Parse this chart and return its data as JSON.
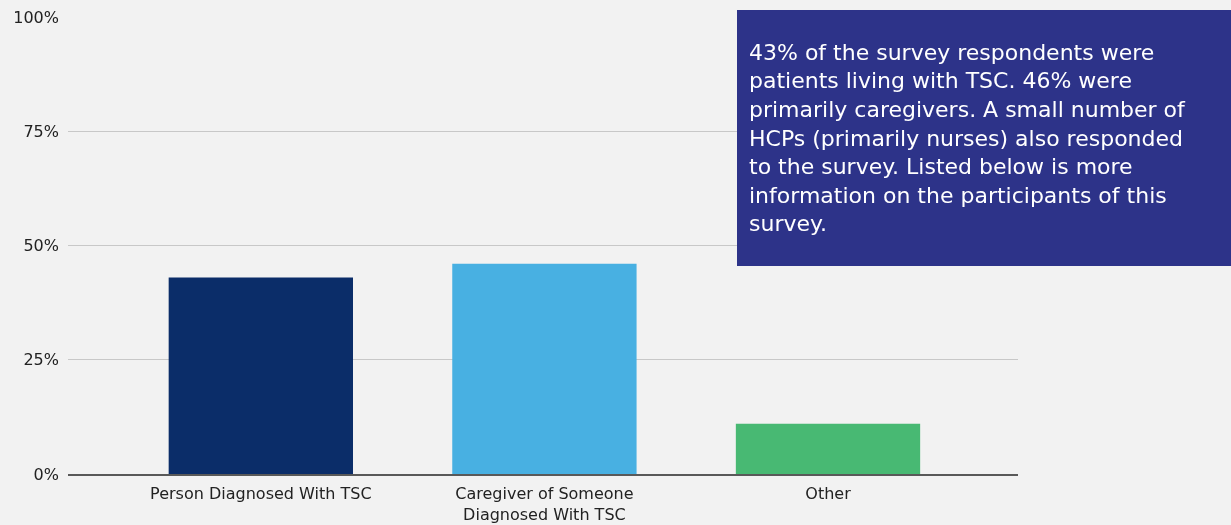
{
  "chart_data": {
    "type": "bar",
    "categories": [
      "Person Diagnosed With TSC",
      "Caregiver of Someone Diagnosed With TSC",
      "Other"
    ],
    "values": [
      43,
      46,
      11
    ],
    "colors": [
      "#0b2d69",
      "#48b0e2",
      "#48b973"
    ],
    "ylim": [
      0,
      100
    ],
    "yticks": [
      {
        "value": 0,
        "label": "0%"
      },
      {
        "value": 25,
        "label": "25%"
      },
      {
        "value": 50,
        "label": "50%"
      },
      {
        "value": 75,
        "label": "75%"
      },
      {
        "value": 100,
        "label": "100%"
      }
    ],
    "grid": "y",
    "annotations": [
      "43% of the survey respondents were patients living with TSC. 46% were primarily caregivers. A small number of HCPs (primarily nurses) also responded to the survey. Listed below is more information on the participants of this survey."
    ]
  }
}
